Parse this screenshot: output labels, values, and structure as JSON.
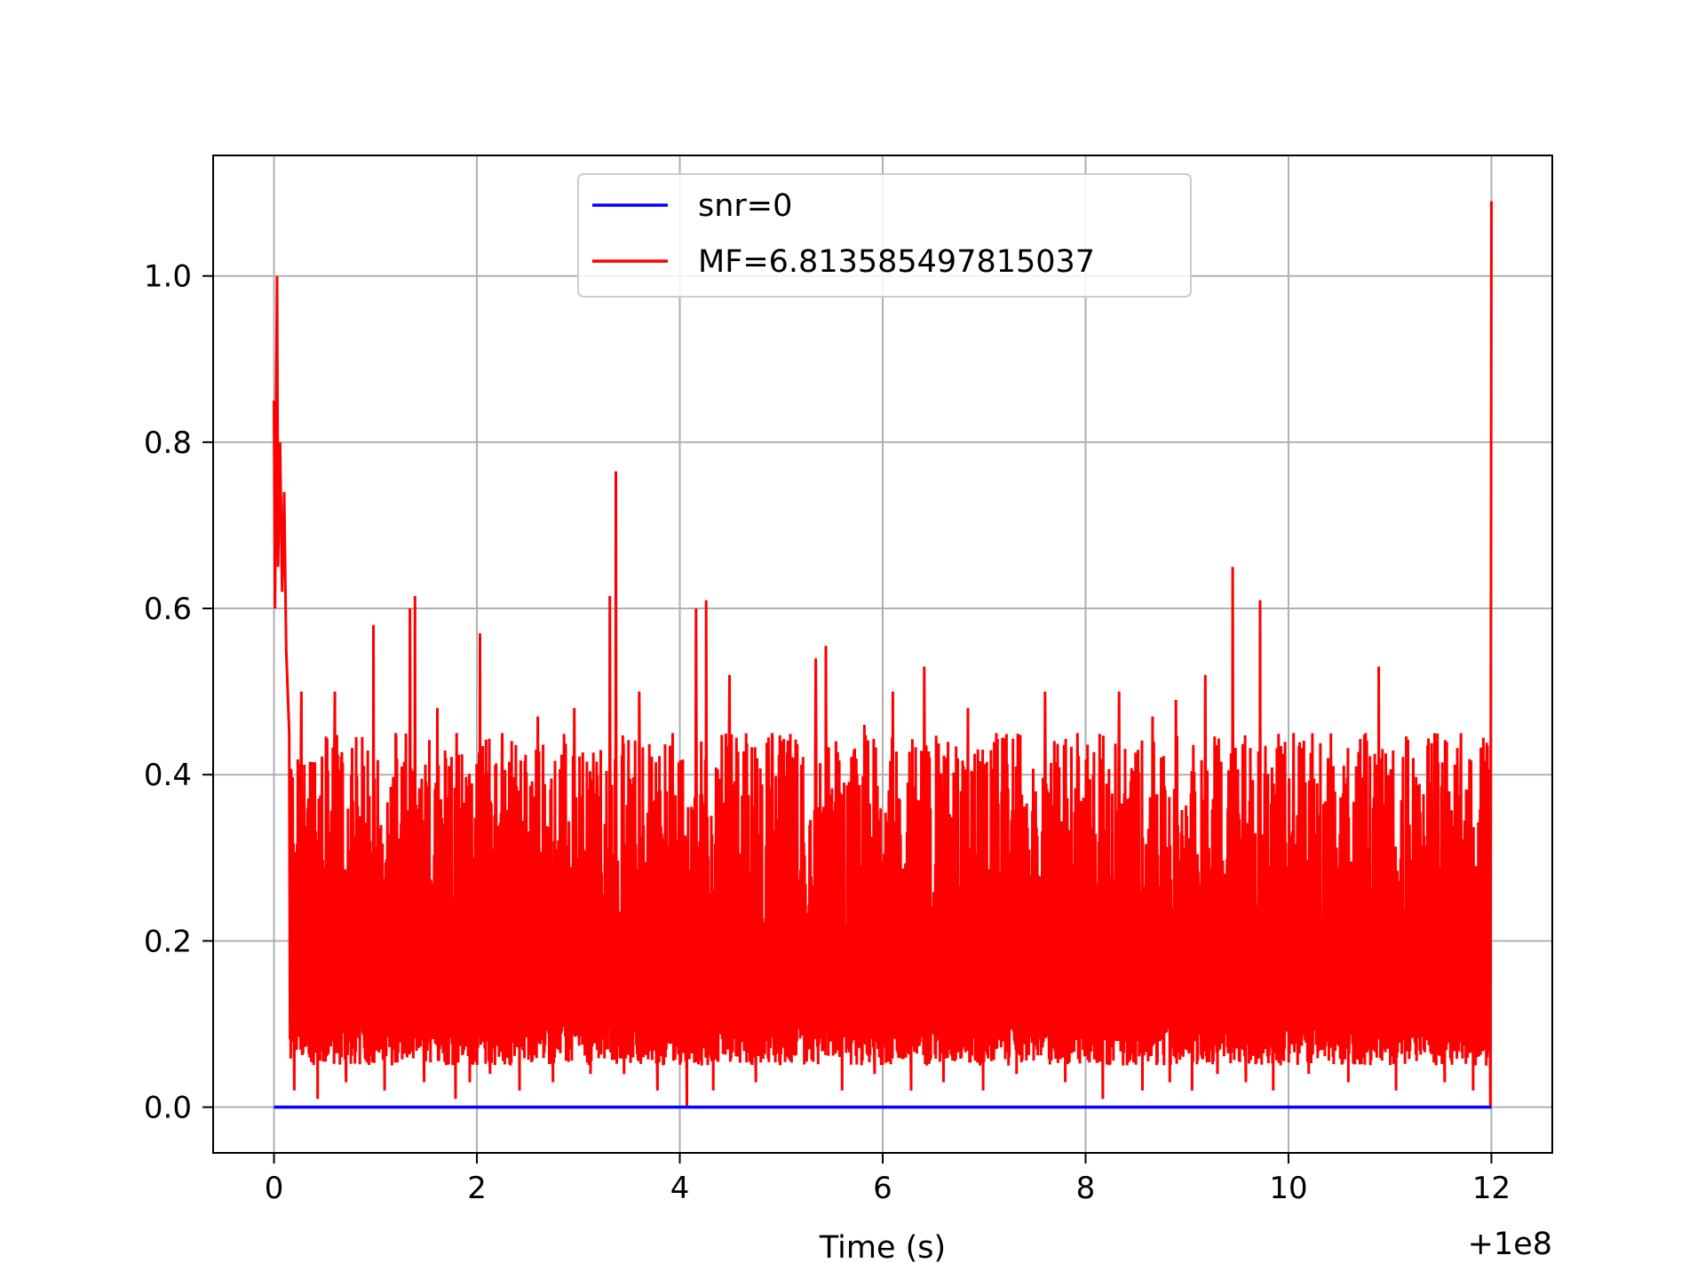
{
  "chart_data": {
    "type": "line",
    "xlabel": "Time (s)",
    "ylabel": "",
    "x_offset_text": "+1e8",
    "x_ticks": [
      "0",
      "2",
      "4",
      "6",
      "8",
      "10",
      "12"
    ],
    "y_ticks": [
      "0.0",
      "0.2",
      "0.4",
      "0.6",
      "0.8",
      "1.0"
    ],
    "xlim": [
      -0.6,
      12.6
    ],
    "ylim": [
      -0.055,
      1.145
    ],
    "grid": true,
    "legend": {
      "position": "top-center"
    },
    "series": [
      {
        "name": "snr=0",
        "color": "#0000ff",
        "x": [
          0,
          12
        ],
        "y": [
          0.0,
          0.0
        ]
      },
      {
        "name": "MF=6.813585497815037",
        "color": "#ff0000",
        "noise_lower": [
          0.05,
          0.1
        ],
        "noise_upper": [
          0.2,
          0.45
        ],
        "x": [
          0.0,
          0.01,
          0.02,
          0.03,
          0.04,
          0.06,
          0.08,
          0.1,
          0.12,
          0.15,
          0.2,
          0.27,
          0.36,
          0.43,
          0.52,
          0.6,
          0.71,
          0.85,
          0.98,
          1.09,
          1.2,
          1.34,
          1.39,
          1.48,
          1.61,
          1.79,
          1.8,
          1.93,
          2.03,
          2.13,
          2.25,
          2.42,
          2.6,
          2.75,
          2.96,
          3.12,
          3.31,
          3.37,
          3.45,
          3.6,
          3.78,
          3.93,
          4.07,
          4.16,
          4.26,
          4.33,
          4.49,
          4.75,
          4.91,
          5.13,
          5.34,
          5.44,
          5.6,
          5.82,
          5.92,
          6.1,
          6.28,
          6.41,
          6.6,
          6.84,
          6.99,
          7.12,
          7.32,
          7.6,
          7.8,
          7.92,
          8.17,
          8.33,
          8.56,
          8.66,
          8.83,
          8.89,
          9.05,
          9.18,
          9.3,
          9.45,
          9.58,
          9.72,
          9.85,
          10.05,
          10.2,
          10.39,
          10.59,
          10.76,
          10.89,
          11.06,
          11.23,
          11.44,
          11.54,
          11.7,
          11.82,
          11.9,
          11.95,
          11.97,
          11.99,
          12.0
        ],
        "y": [
          0.85,
          0.6,
          0.82,
          1.0,
          0.65,
          0.8,
          0.62,
          0.74,
          0.55,
          0.45,
          0.02,
          0.5,
          0.38,
          0.01,
          0.38,
          0.5,
          0.03,
          0.35,
          0.58,
          0.02,
          0.45,
          0.6,
          0.615,
          0.03,
          0.48,
          0.01,
          0.45,
          0.03,
          0.57,
          0.04,
          0.45,
          0.02,
          0.47,
          0.03,
          0.48,
          0.04,
          0.615,
          0.765,
          0.04,
          0.5,
          0.02,
          0.45,
          0.0,
          0.6,
          0.61,
          0.02,
          0.52,
          0.03,
          0.45,
          0.42,
          0.54,
          0.555,
          0.02,
          0.46,
          0.04,
          0.5,
          0.02,
          0.53,
          0.03,
          0.48,
          0.02,
          0.45,
          0.04,
          0.5,
          0.03,
          0.45,
          0.01,
          0.5,
          0.02,
          0.47,
          0.03,
          0.49,
          0.02,
          0.52,
          0.04,
          0.65,
          0.03,
          0.61,
          0.02,
          0.45,
          0.04,
          0.42,
          0.03,
          0.45,
          0.53,
          0.02,
          0.42,
          0.45,
          0.03,
          0.45,
          0.02,
          0.37,
          0.05,
          0.31,
          0.0,
          1.09
        ]
      }
    ]
  }
}
